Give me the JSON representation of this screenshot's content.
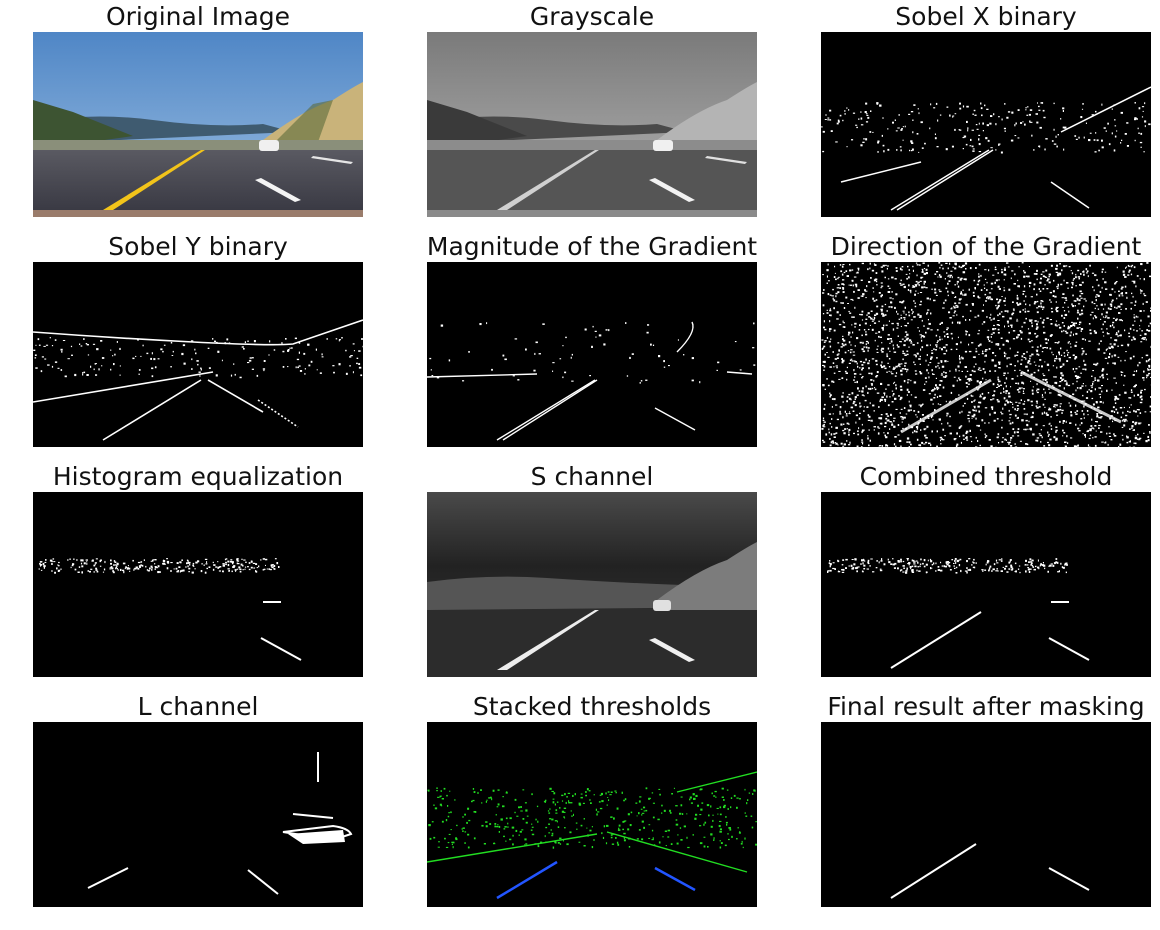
{
  "figure": {
    "panels": [
      {
        "title": "Original Image",
        "kind": "photo"
      },
      {
        "title": "Grayscale",
        "kind": "gray"
      },
      {
        "title": "Sobel X binary",
        "kind": "sobelx"
      },
      {
        "title": "Sobel Y binary",
        "kind": "sobely"
      },
      {
        "title": "Magnitude of the Gradient",
        "kind": "magnitude"
      },
      {
        "title": "Direction of the Gradient",
        "kind": "direction"
      },
      {
        "title": "Histogram equalization",
        "kind": "histeq"
      },
      {
        "title": "S channel",
        "kind": "schannel"
      },
      {
        "title": "Combined threshold",
        "kind": "combined"
      },
      {
        "title": "L channel",
        "kind": "lchannel"
      },
      {
        "title": "Stacked thresholds",
        "kind": "stacked"
      },
      {
        "title": "Final result after masking",
        "kind": "final"
      }
    ],
    "colors": {
      "sky": "#6f9fd2",
      "road": "#45454f",
      "hill": "#c9b37a",
      "yellow_lane": "#f2c41a",
      "binary_white": "#ffffff",
      "binary_black": "#000000",
      "stack_green": "#22dd22",
      "stack_blue": "#2255ff"
    }
  }
}
